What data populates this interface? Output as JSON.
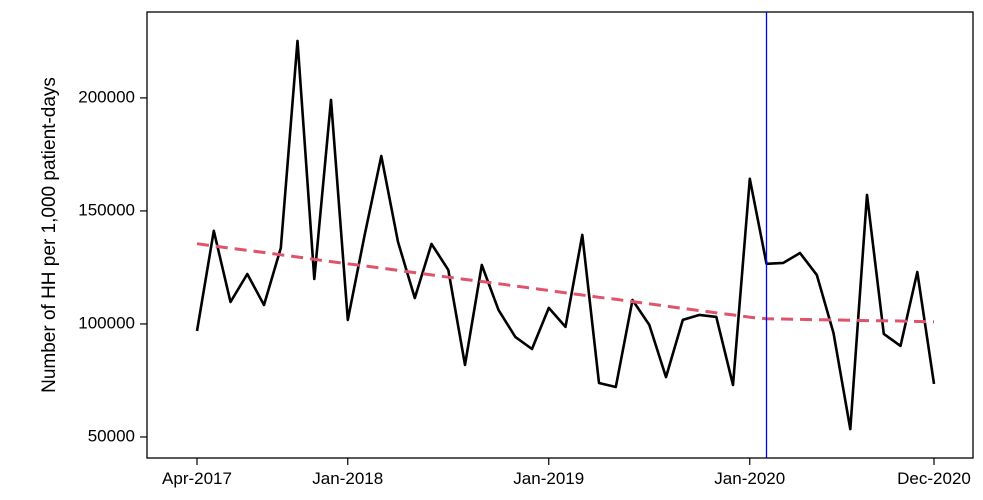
{
  "chart_data": {
    "type": "line",
    "y_label": "Number of HH per 1,000 patient-days",
    "categories": [
      "Apr-2017",
      null,
      null,
      null,
      null,
      null,
      null,
      null,
      null,
      "Jan-2018",
      null,
      null,
      null,
      null,
      null,
      null,
      null,
      null,
      null,
      null,
      null,
      "Jan-2019",
      null,
      null,
      null,
      null,
      null,
      null,
      null,
      null,
      null,
      null,
      null,
      "Jan-2020",
      null,
      null,
      null,
      null,
      null,
      null,
      null,
      null,
      null,
      null,
      "Dec-2020"
    ],
    "series": [
      {
        "color": "#000000",
        "dash": false,
        "values": [
          96900,
          141200,
          109700,
          122100,
          108400,
          133600,
          225200,
          119900,
          199100,
          101800,
          139000,
          174300,
          136300,
          111500,
          135400,
          123900,
          81900,
          126100,
          106200,
          94250,
          88900,
          107100,
          98700,
          139400,
          73900,
          72100,
          110600,
          99600,
          76500,
          101800,
          104000,
          103100,
          73000,
          164200,
          126600,
          127000,
          131400,
          121700,
          96000,
          53500,
          157100,
          95600,
          90300,
          123000,
          73500
        ]
      },
      {
        "color": "#df536b",
        "dash": true,
        "values": [
          135500,
          134500,
          133500,
          132600,
          131600,
          130600,
          129600,
          128600,
          127600,
          126600,
          125700,
          124700,
          123700,
          122700,
          121700,
          120700,
          119700,
          118800,
          117800,
          116800,
          115800,
          114800,
          113800,
          112800,
          111800,
          110900,
          109900,
          108900,
          107900,
          106900,
          105900,
          104900,
          104000,
          103000,
          102300,
          102200,
          102000,
          101900,
          101800,
          101600,
          101500,
          101400,
          101300,
          101100,
          101000
        ]
      }
    ],
    "vline": {
      "x": 34,
      "color": "#0000ff"
    },
    "ylim": [
      40700,
      238000
    ],
    "yticks": [
      50000,
      100000,
      150000,
      200000
    ]
  }
}
